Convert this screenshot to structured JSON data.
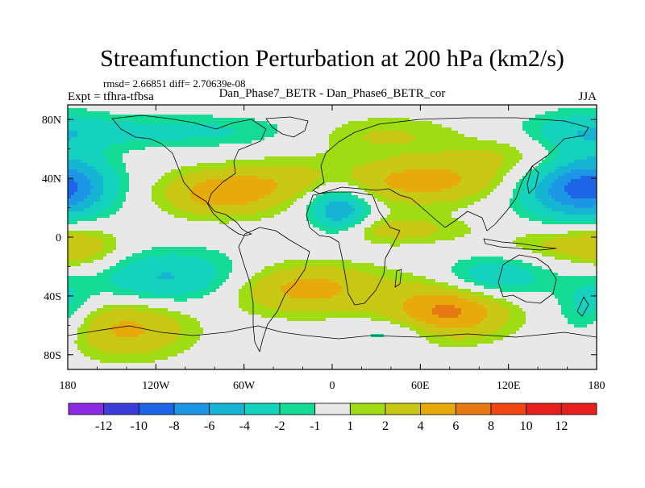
{
  "chart_data": {
    "type": "heatmap",
    "title": "Streamfunction Perturbation at 200 hPa (km2/s)",
    "stats": "rmsd= 2.66851 diff= 2.70639e-08",
    "left_label": "Expt = tfhra-tfbsa",
    "center_label": "Dan_Phase7_BETR - Dan_Phase6_BETR_cor",
    "right_label": "JJA",
    "x_range": [
      -180,
      180
    ],
    "y_range": [
      -90,
      90
    ],
    "x_ticks": [
      {
        "value": -180,
        "label": "180"
      },
      {
        "value": -120,
        "label": "120W"
      },
      {
        "value": -60,
        "label": "60W"
      },
      {
        "value": 0,
        "label": "0"
      },
      {
        "value": 60,
        "label": "60E"
      },
      {
        "value": 120,
        "label": "120E"
      },
      {
        "value": 180,
        "label": "180"
      }
    ],
    "y_ticks": [
      {
        "value": 80,
        "label": "80N"
      },
      {
        "value": 40,
        "label": "40N"
      },
      {
        "value": 0,
        "label": "0"
      },
      {
        "value": -40,
        "label": "40S"
      },
      {
        "value": -80,
        "label": "80S"
      }
    ],
    "contour_levels": [
      -12,
      -10,
      -8,
      -6,
      -4,
      -2,
      -1,
      1,
      2,
      4,
      6,
      8,
      10,
      12
    ],
    "level_labels": [
      "-12",
      "-10",
      "-8",
      "-6",
      "-4",
      "-2",
      "-1",
      "1",
      "2",
      "4",
      "6",
      "8",
      "10",
      "12"
    ],
    "colors": [
      "#8a2be2",
      "#3c3cd8",
      "#1e64e6",
      "#1e96e6",
      "#14b4d2",
      "#14d2be",
      "#14dc96",
      "#e8e8e8",
      "#a0dc14",
      "#c8c814",
      "#e6aa0a",
      "#e67814",
      "#f04614",
      "#e61e1e",
      "#e61e1e"
    ],
    "anomalies": [
      {
        "lon": 80,
        "lat": -50,
        "amp": 6.5,
        "sx": 28,
        "sy": 13
      },
      {
        "lon": 60,
        "lat": 38,
        "amp": 5.0,
        "sx": 38,
        "sy": 11
      },
      {
        "lon": -75,
        "lat": 30,
        "amp": 5.5,
        "sx": 28,
        "sy": 11
      },
      {
        "lon": 5,
        "lat": 18,
        "amp": -6.0,
        "sx": 15,
        "sy": 12
      },
      {
        "lon": 160,
        "lat": 32,
        "amp": -5.5,
        "sx": 26,
        "sy": 14
      },
      {
        "lon": -178,
        "lat": 35,
        "amp": -5.0,
        "sx": 22,
        "sy": 14
      },
      {
        "lon": -110,
        "lat": -28,
        "amp": -4.5,
        "sx": 40,
        "sy": 13
      },
      {
        "lon": -20,
        "lat": -35,
        "amp": 5.0,
        "sx": 40,
        "sy": 12
      },
      {
        "lon": 110,
        "lat": -28,
        "amp": -4.0,
        "sx": 25,
        "sy": 10
      },
      {
        "lon": -140,
        "lat": -62,
        "amp": 4.5,
        "sx": 30,
        "sy": 14
      },
      {
        "lon": 30,
        "lat": 70,
        "amp": 2.6,
        "sx": 40,
        "sy": 9
      },
      {
        "lon": -110,
        "lat": 72,
        "amp": -2.5,
        "sx": 80,
        "sy": 8
      },
      {
        "lon": 170,
        "lat": 70,
        "amp": -2.5,
        "sx": 25,
        "sy": 12
      },
      {
        "lon": 40,
        "lat": 5,
        "amp": 3.0,
        "sx": 35,
        "sy": 7
      },
      {
        "lon": 160,
        "lat": -5,
        "amp": 2.5,
        "sx": 30,
        "sy": 8
      },
      {
        "lon": -170,
        "lat": -10,
        "amp": 2.5,
        "sx": 20,
        "sy": 12
      },
      {
        "lon": 175,
        "lat": -50,
        "amp": -3.0,
        "sx": 15,
        "sy": 15
      },
      {
        "lon": -30,
        "lat": 40,
        "amp": 2.2,
        "sx": 25,
        "sy": 10
      },
      {
        "lon": 40,
        "lat": -65,
        "amp": -2.0,
        "sx": 20,
        "sy": 6
      },
      {
        "lon": 120,
        "lat": 55,
        "amp": 2.0,
        "sx": 30,
        "sy": 10
      }
    ]
  }
}
